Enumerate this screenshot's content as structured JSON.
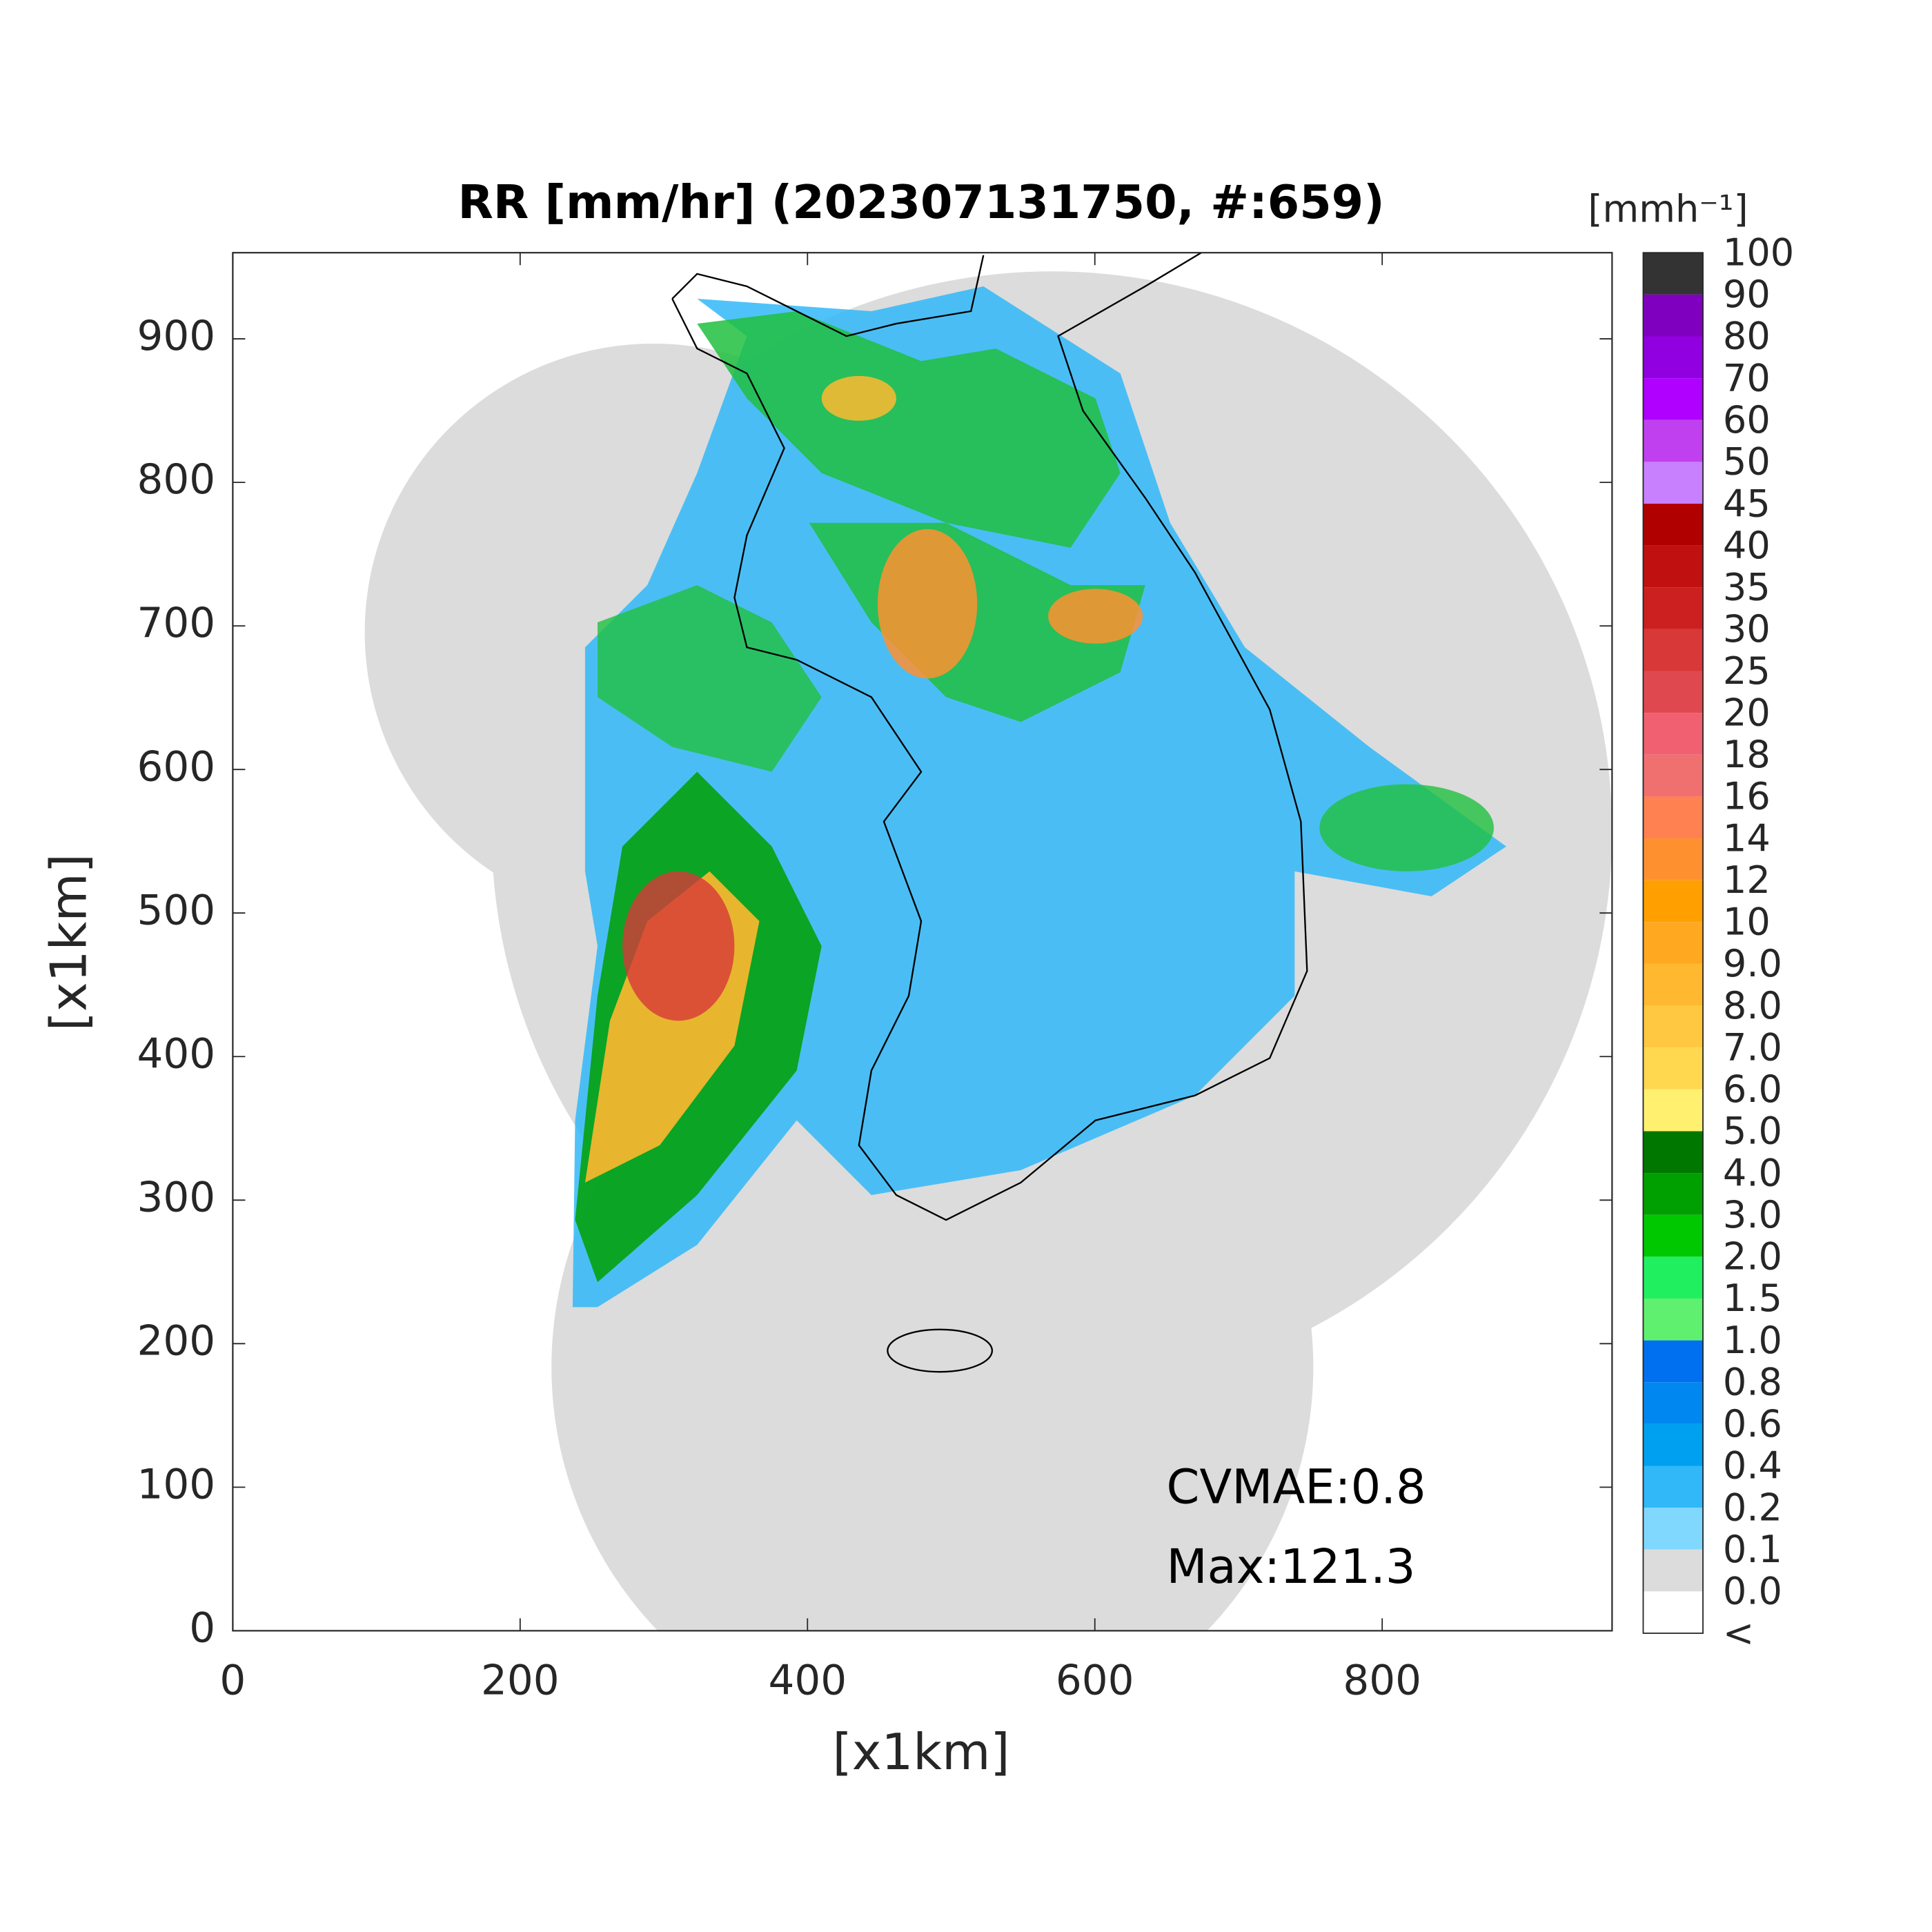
{
  "chart_data": {
    "type": "radar-map",
    "title": "RR [mm/hr] (202307131750, #:659)",
    "xlabel": "[x1km]",
    "ylabel": "[x1km]",
    "xlim": [
      0,
      960
    ],
    "ylim": [
      0,
      960
    ],
    "xticks": [
      0,
      200,
      400,
      600,
      800
    ],
    "yticks": [
      0,
      100,
      200,
      300,
      400,
      500,
      600,
      700,
      800,
      900
    ],
    "annotations": [
      "CVMAE:0.8",
      "Max:121.3"
    ],
    "colorbar": {
      "label": "[mmh⁻¹]",
      "labels": [
        "100",
        "90",
        "80",
        "70",
        "60",
        "50",
        "45",
        "40",
        "35",
        "30",
        "25",
        "20",
        "18",
        "16",
        "14",
        "12",
        "10",
        "9.0",
        "8.0",
        "7.0",
        "6.0",
        "5.0",
        "4.0",
        "3.0",
        "2.0",
        "1.5",
        "1.0",
        "0.8",
        "0.6",
        "0.4",
        "0.2",
        "0.1",
        "0.0",
        "<"
      ],
      "colors": [
        "#333333",
        "#8000c0",
        "#9000e0",
        "#b000ff",
        "#c040f0",
        "#c880ff",
        "#b00000",
        "#c01010",
        "#cc2020",
        "#d83838",
        "#e04850",
        "#f06070",
        "#f07070",
        "#ff8050",
        "#ff9030",
        "#ffa000",
        "#ffa820",
        "#ffb830",
        "#ffc840",
        "#ffd850",
        "#fff070",
        "#007800",
        "#00a000",
        "#00c800",
        "#20f060",
        "#60f070",
        "#0070f0",
        "#0088f0",
        "#00a0f0",
        "#30b8f8",
        "#80d8ff",
        "#dcdcdc",
        "#ffffff"
      ]
    }
  }
}
